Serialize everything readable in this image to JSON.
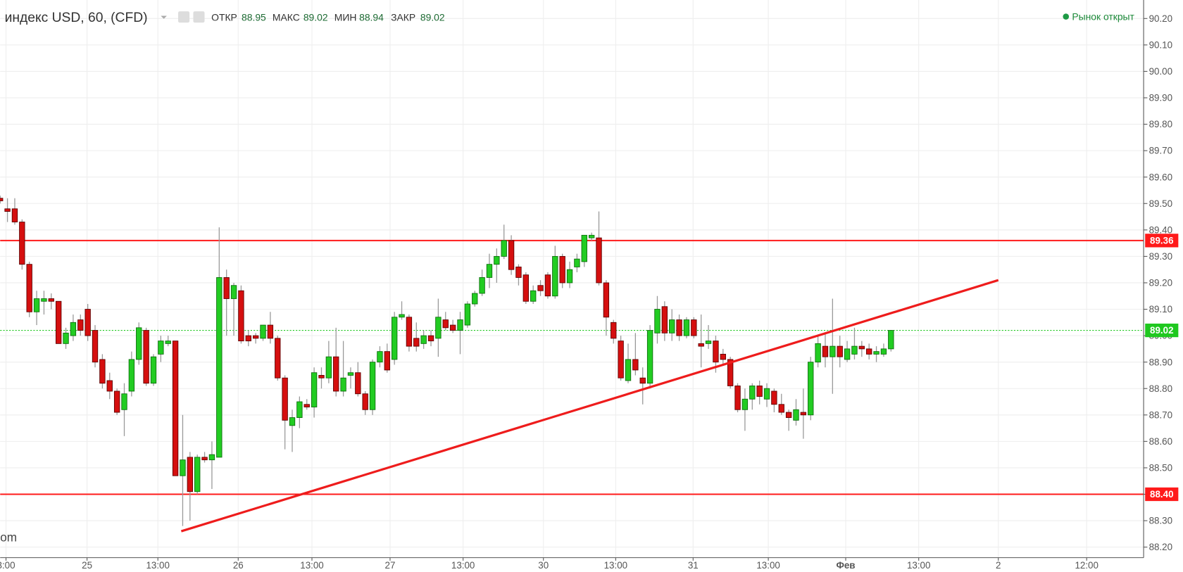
{
  "chart_data": {
    "type": "candlestick",
    "title": "индекс USD, 60, (CFD)",
    "ohlc_labels": [
      "ОТКР",
      "МАКС",
      "МИН",
      "ЗАКР"
    ],
    "status": "Рынок открыт",
    "watermark": "om",
    "up_color": "#22cc22",
    "down_color": "#d50f0f",
    "grid": true,
    "candles": {
      "open": [
        89.52,
        89.48,
        89.48,
        89.43,
        89.27,
        89.09,
        89.13,
        89.14,
        89.13,
        88.97,
        89.0,
        89.06,
        89.1,
        89.02,
        88.91,
        88.83,
        88.79,
        88.72,
        88.79,
        88.91,
        89.02,
        88.82,
        88.93,
        88.97,
        88.98,
        88.47,
        88.54,
        88.41,
        88.54,
        88.53,
        88.54,
        89.22,
        89.14,
        89.17,
        89.0,
        89.0,
        88.99,
        89.04,
        88.99,
        88.84,
        88.66,
        88.69,
        88.74,
        88.73,
        88.85,
        88.84,
        88.92,
        88.79,
        88.85,
        88.86,
        88.78,
        88.72,
        88.9,
        88.94,
        88.91,
        89.07,
        89.07,
        88.99,
        88.97,
        89.0,
        88.99,
        89.06,
        89.04,
        89.02,
        89.04,
        89.12,
        89.16,
        89.22,
        89.27,
        89.3,
        89.36,
        89.26,
        89.23,
        89.13,
        89.19,
        89.23,
        89.15,
        89.3,
        89.2,
        89.26,
        89.28,
        89.37,
        89.37,
        89.2,
        89.05,
        88.98,
        88.83,
        88.91,
        88.84,
        88.82,
        89.01,
        89.11,
        89.01,
        89.06,
        89.0,
        89.06,
        88.97,
        88.97,
        88.98,
        88.93,
        88.91,
        88.81,
        88.72,
        88.76,
        88.81,
        88.76,
        88.79,
        88.74,
        88.71,
        88.68,
        88.71,
        88.7,
        88.9,
        88.96,
        88.92,
        88.96,
        88.91,
        88.93,
        88.96,
        88.95,
        88.93,
        88.93,
        88.95
      ],
      "high": [
        89.53,
        89.52,
        89.52,
        89.44,
        89.28,
        89.17,
        89.17,
        89.16,
        89.13,
        89.03,
        89.08,
        89.08,
        89.12,
        89.04,
        88.93,
        88.86,
        88.8,
        88.82,
        88.94,
        89.05,
        89.03,
        88.93,
        89.0,
        89.0,
        88.98,
        88.7,
        88.56,
        88.55,
        88.56,
        88.6,
        89.41,
        89.25,
        89.2,
        89.19,
        89.02,
        89.01,
        89.04,
        89.09,
        89.0,
        88.85,
        88.72,
        88.77,
        88.76,
        88.88,
        88.88,
        88.98,
        89.03,
        88.98,
        88.88,
        88.9,
        88.79,
        88.91,
        88.96,
        88.97,
        89.09,
        89.13,
        89.08,
        89.05,
        89.02,
        89.02,
        89.14,
        89.09,
        89.06,
        89.09,
        89.13,
        89.17,
        89.25,
        89.31,
        89.33,
        89.42,
        89.38,
        89.27,
        89.24,
        89.19,
        89.21,
        89.24,
        89.34,
        89.31,
        89.28,
        89.31,
        89.38,
        89.39,
        89.47,
        89.21,
        89.06,
        89.0,
        88.97,
        89.01,
        88.88,
        89.04,
        89.15,
        89.13,
        89.1,
        89.08,
        89.07,
        89.07,
        89.08,
        89.04,
        89.0,
        88.95,
        88.92,
        88.82,
        88.8,
        88.82,
        88.83,
        88.82,
        88.8,
        88.78,
        88.72,
        88.76,
        88.8,
        88.92,
        89.0,
        89.01,
        89.14,
        89.0,
        88.98,
        89.03,
        88.98,
        88.97,
        88.96,
        88.97,
        89.02
      ],
      "low": [
        89.5,
        89.43,
        89.42,
        89.25,
        89.07,
        89.04,
        89.08,
        89.1,
        88.97,
        88.95,
        88.98,
        89.0,
        88.98,
        88.88,
        88.8,
        88.76,
        88.7,
        88.62,
        88.77,
        88.89,
        88.81,
        88.81,
        88.9,
        88.96,
        88.47,
        88.28,
        88.3,
        88.4,
        88.52,
        88.42,
        88.54,
        89.0,
        89.0,
        88.97,
        88.96,
        88.97,
        88.98,
        88.97,
        88.83,
        88.57,
        88.56,
        88.65,
        88.72,
        88.69,
        88.8,
        88.82,
        88.77,
        88.77,
        88.8,
        88.77,
        88.7,
        88.7,
        88.88,
        88.86,
        88.89,
        89.06,
        88.94,
        88.94,
        88.95,
        88.96,
        88.92,
        89.02,
        89.01,
        88.93,
        89.03,
        89.11,
        89.15,
        89.18,
        89.2,
        89.29,
        89.23,
        89.19,
        89.12,
        89.12,
        89.15,
        89.14,
        89.14,
        89.18,
        89.18,
        89.24,
        89.26,
        89.36,
        89.19,
        89.0,
        88.97,
        88.83,
        88.82,
        88.85,
        88.74,
        88.8,
        88.97,
        88.98,
        88.98,
        88.98,
        88.99,
        88.99,
        88.88,
        88.95,
        88.86,
        88.89,
        88.8,
        88.71,
        88.64,
        88.72,
        88.74,
        88.73,
        88.71,
        88.7,
        88.64,
        88.66,
        88.61,
        88.68,
        88.88,
        88.88,
        88.78,
        88.88,
        88.9,
        88.91,
        88.92,
        88.91,
        88.9,
        88.92,
        88.94
      ],
      "close": [
        89.51,
        89.47,
        89.43,
        89.27,
        89.09,
        89.14,
        89.14,
        89.13,
        88.97,
        89.01,
        89.05,
        89.02,
        89.0,
        88.9,
        88.82,
        88.79,
        88.71,
        88.78,
        88.91,
        89.03,
        88.82,
        88.92,
        88.98,
        88.98,
        88.47,
        88.53,
        88.41,
        88.54,
        88.53,
        88.55,
        89.22,
        89.14,
        89.19,
        88.98,
        88.98,
        88.99,
        89.04,
        88.99,
        88.84,
        88.68,
        88.69,
        88.75,
        88.73,
        88.86,
        88.84,
        88.92,
        88.79,
        88.84,
        88.86,
        88.78,
        88.72,
        88.9,
        88.94,
        88.87,
        89.07,
        89.08,
        88.96,
        88.96,
        89.0,
        88.98,
        89.07,
        89.03,
        89.02,
        89.06,
        89.12,
        89.16,
        89.22,
        89.27,
        89.3,
        89.36,
        89.25,
        89.22,
        89.13,
        89.17,
        89.17,
        89.15,
        89.3,
        89.2,
        89.25,
        89.29,
        89.38,
        89.38,
        89.2,
        89.07,
        88.99,
        88.84,
        88.91,
        88.87,
        88.82,
        89.02,
        89.1,
        89.01,
        89.06,
        89.0,
        89.06,
        89.0,
        88.96,
        88.98,
        88.9,
        88.91,
        88.81,
        88.72,
        88.76,
        88.81,
        88.77,
        88.8,
        88.74,
        88.71,
        88.69,
        88.72,
        88.7,
        88.9,
        88.97,
        88.92,
        88.96,
        88.92,
        88.95,
        88.96,
        88.95,
        88.93,
        88.94,
        88.95,
        89.02
      ]
    },
    "xlim": [
      0,
      156.6
    ],
    "xticks": [
      {
        "value": 0.8,
        "label": "3:00"
      },
      {
        "value": 11.9,
        "label": "25"
      },
      {
        "value": 21.6,
        "label": "13:00"
      },
      {
        "value": 32.6,
        "label": "26"
      },
      {
        "value": 42.7,
        "label": "13:00"
      },
      {
        "value": 53.4,
        "label": "27"
      },
      {
        "value": 63.4,
        "label": "13:00"
      },
      {
        "value": 74.4,
        "label": "30"
      },
      {
        "value": 84.3,
        "label": "13:00"
      },
      {
        "value": 94.9,
        "label": "31"
      },
      {
        "value": 105.2,
        "label": "13:00"
      },
      {
        "value": 115.8,
        "label": "Фев"
      },
      {
        "value": 125.8,
        "label": "13:00"
      },
      {
        "value": 136.7,
        "label": "2"
      },
      {
        "value": 148.8,
        "label": "12:00"
      }
    ],
    "ylim": [
      88.16,
      90.27
    ],
    "yticks": [
      {
        "value": 88.2,
        "label": "88.20"
      },
      {
        "value": 88.3,
        "label": "88.30"
      },
      {
        "value": 88.4,
        "label": "88.40"
      },
      {
        "value": 88.5,
        "label": "88.50"
      },
      {
        "value": 88.6,
        "label": "88.60"
      },
      {
        "value": 88.7,
        "label": "88.70"
      },
      {
        "value": 88.8,
        "label": "88.80"
      },
      {
        "value": 88.9,
        "label": "88.90"
      },
      {
        "value": 89.0,
        "label": "89.00"
      },
      {
        "value": 89.1,
        "label": "89.10"
      },
      {
        "value": 89.2,
        "label": "89.20"
      },
      {
        "value": 89.3,
        "label": "89.30"
      },
      {
        "value": 89.4,
        "label": "89.40"
      },
      {
        "value": 89.5,
        "label": "89.50"
      },
      {
        "value": 89.6,
        "label": "89.60"
      },
      {
        "value": 89.7,
        "label": "89.70"
      },
      {
        "value": 89.8,
        "label": "89.80"
      },
      {
        "value": 89.9,
        "label": "89.90"
      },
      {
        "value": 90.0,
        "label": "90.00"
      },
      {
        "value": 90.1,
        "label": "90.10"
      },
      {
        "value": 90.2,
        "label": "90.20"
      }
    ],
    "hlines": [
      {
        "value": 89.36,
        "label": "89.36",
        "color": "#ff1a1a",
        "style": "solid"
      },
      {
        "value": 88.4,
        "label": "88.40",
        "color": "#ff1a1a",
        "style": "solid"
      },
      {
        "value": 89.02,
        "label": "89.02",
        "color": "#1fc81f",
        "style": "dotted"
      }
    ],
    "trendline": {
      "x": [
        24.8,
        136.7
      ],
      "y": [
        88.26,
        89.21
      ],
      "color": "#ee1c1c"
    }
  }
}
